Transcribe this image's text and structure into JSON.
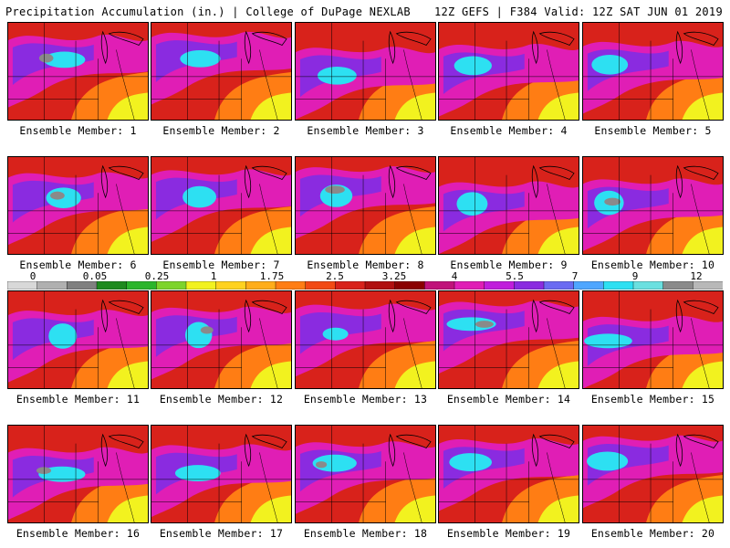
{
  "header": {
    "title": "Precipitation Accumulation (in.) | College of DuPage NEXLAB",
    "run_info": "12Z GEFS | F384 Valid: 12Z SAT JUN 01 2019"
  },
  "legend": {
    "labels": [
      "0",
      "0.05",
      "0.25",
      "1",
      "1.75",
      "2.5",
      "3.25",
      "4",
      "5.5",
      "7",
      "9",
      "12"
    ],
    "colors": [
      "#d8d8d8",
      "#b0b0b0",
      "#808080",
      "#1e8a1e",
      "#2bb52b",
      "#7dd42b",
      "#f2f21f",
      "#ffd21f",
      "#ffad1a",
      "#ff7d14",
      "#f24a14",
      "#d8221b",
      "#b01010",
      "#8a0000",
      "#c0127a",
      "#e01eb5",
      "#c01edb",
      "#8a2be0",
      "#6a6af2",
      "#4fa6ff",
      "#2de0f2",
      "#6ae0e0",
      "#8a8a8a",
      "#b8b8b8"
    ]
  },
  "members": [
    {
      "label": "Ensemble Member: 1"
    },
    {
      "label": "Ensemble Member: 2"
    },
    {
      "label": "Ensemble Member: 3"
    },
    {
      "label": "Ensemble Member: 4"
    },
    {
      "label": "Ensemble Member: 5"
    },
    {
      "label": "Ensemble Member: 6"
    },
    {
      "label": "Ensemble Member: 7"
    },
    {
      "label": "Ensemble Member: 8"
    },
    {
      "label": "Ensemble Member: 9"
    },
    {
      "label": "Ensemble Member: 10"
    },
    {
      "label": "Ensemble Member: 11"
    },
    {
      "label": "Ensemble Member: 12"
    },
    {
      "label": "Ensemble Member: 13"
    },
    {
      "label": "Ensemble Member: 14"
    },
    {
      "label": "Ensemble Member: 15"
    },
    {
      "label": "Ensemble Member: 16"
    },
    {
      "label": "Ensemble Member: 17"
    },
    {
      "label": "Ensemble Member: 18"
    },
    {
      "label": "Ensemble Member: 19"
    },
    {
      "label": "Ensemble Member: 20"
    }
  ]
}
